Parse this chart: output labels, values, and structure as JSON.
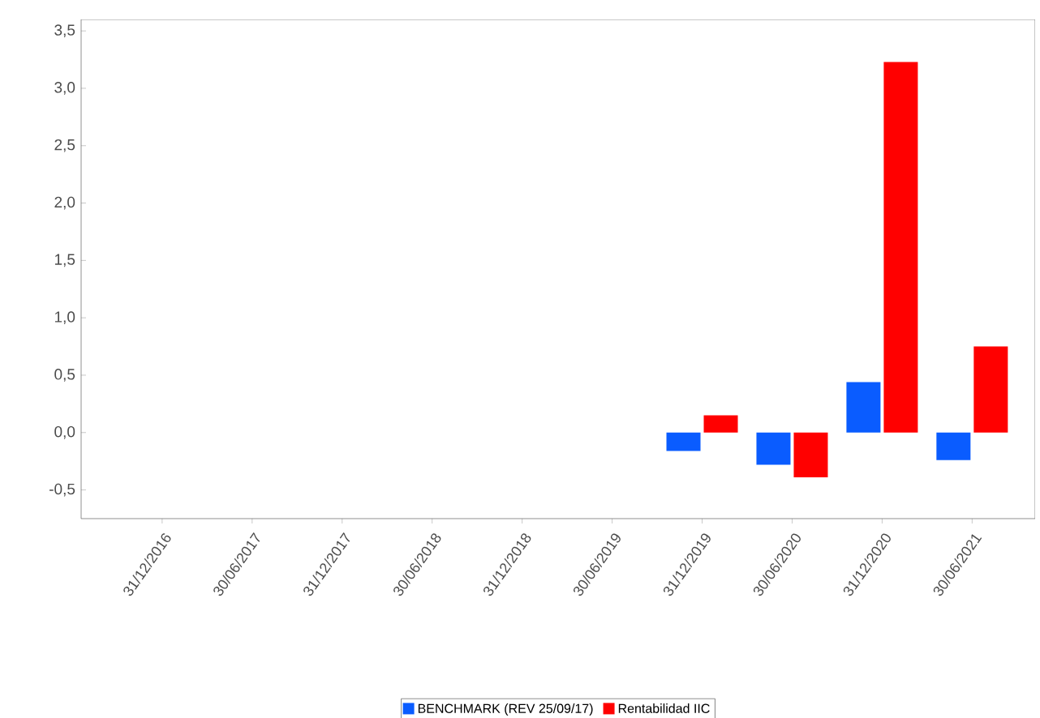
{
  "chart_data": {
    "type": "bar",
    "categories": [
      "31/12/2016",
      "30/06/2017",
      "31/12/2017",
      "30/06/2018",
      "31/12/2018",
      "30/06/2019",
      "31/12/2019",
      "30/06/2020",
      "31/12/2020",
      "30/06/2021"
    ],
    "series": [
      {
        "name": "BENCHMARK (REV 25/09/17)",
        "color": "#0a5cff",
        "values": [
          null,
          null,
          null,
          null,
          null,
          null,
          -0.16,
          -0.28,
          0.44,
          -0.24
        ]
      },
      {
        "name": "Rentabilidad IIC",
        "color": "#ff0000",
        "values": [
          null,
          null,
          null,
          null,
          null,
          null,
          0.15,
          -0.39,
          3.23,
          0.75
        ]
      }
    ],
    "ylim": [
      -0.75,
      3.6
    ],
    "yticks": [
      {
        "value": -0.5,
        "label": "-0,5"
      },
      {
        "value": 0,
        "label": "0,0"
      },
      {
        "value": 0.5,
        "label": "0,5"
      },
      {
        "value": 1,
        "label": "1,0"
      },
      {
        "value": 1.5,
        "label": "1,5"
      },
      {
        "value": 2,
        "label": "2,0"
      },
      {
        "value": 2.5,
        "label": "2,5"
      },
      {
        "value": 3,
        "label": "3,0"
      },
      {
        "value": 3.5,
        "label": "3,5"
      }
    ],
    "grid": false,
    "legend": "bottom"
  }
}
